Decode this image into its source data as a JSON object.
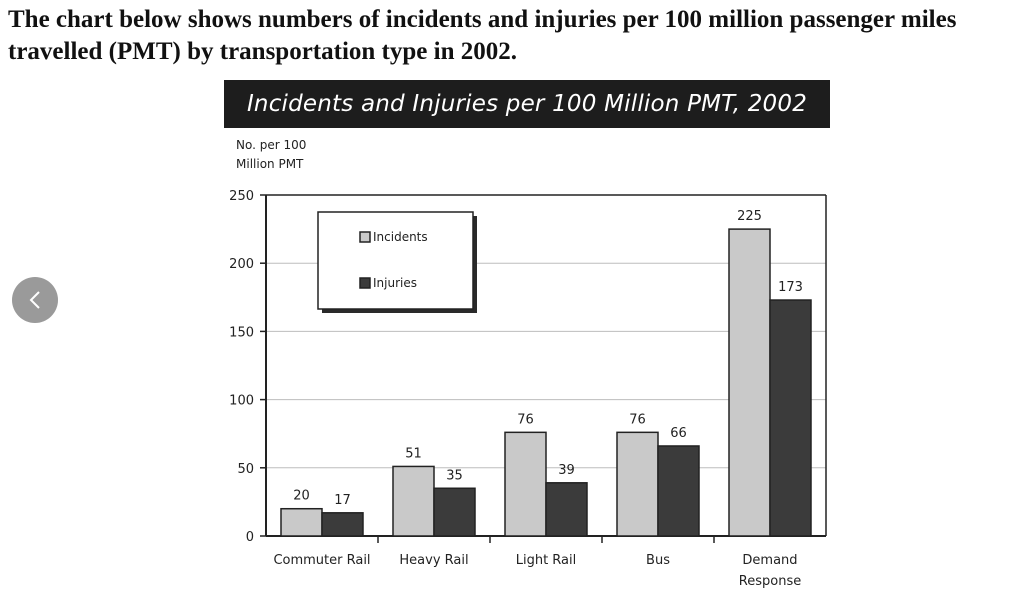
{
  "heading": "The chart below shows numbers of incidents and injuries per 100 million passenger miles travelled (PMT) by transportation type in 2002.",
  "nav": {
    "prev_icon": "‹"
  },
  "chart_data": {
    "type": "bar",
    "title": "Incidents and Injuries per 100 Million PMT, 2002",
    "ylabel": "No. per 100 Million PMT",
    "xlabel": "",
    "categories": [
      "Commuter Rail",
      "Heavy Rail",
      "Light Rail",
      "Bus",
      "Demand Response"
    ],
    "series": [
      {
        "name": "Incidents",
        "values": [
          20,
          51,
          76,
          76,
          225
        ],
        "color": "#c9c9c9"
      },
      {
        "name": "Injuries",
        "values": [
          17,
          35,
          39,
          66,
          173
        ],
        "color": "#3b3b3b"
      }
    ],
    "ylim": [
      0,
      250
    ],
    "yticks": [
      0,
      50,
      100,
      150,
      200,
      250
    ],
    "grid": true,
    "legend": "top-left",
    "data_labels": true
  }
}
